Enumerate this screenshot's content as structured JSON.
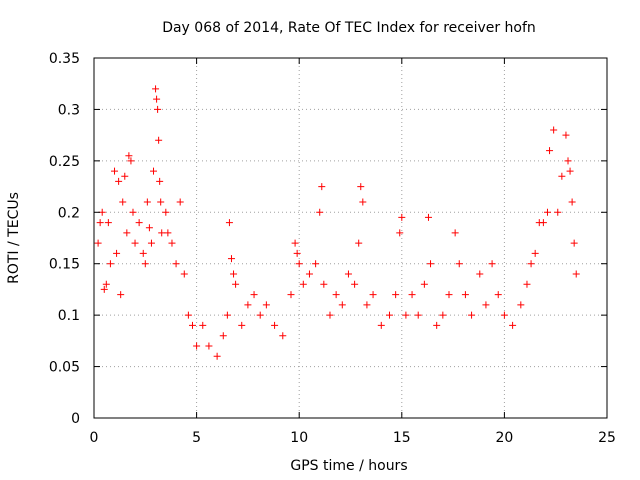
{
  "chart_data": {
    "type": "scatter",
    "title": "Day 068 of 2014, Rate Of TEC Index for receiver hofn",
    "xlabel": "GPS time / hours",
    "ylabel": "ROTI / TECUs",
    "xlim": [
      0,
      25
    ],
    "ylim": [
      0,
      0.35
    ],
    "x_ticks": [
      "0",
      "5",
      "10",
      "15",
      "20",
      "25"
    ],
    "y_ticks": [
      "0",
      "0.05",
      "0.1",
      "0.15",
      "0.2",
      "0.25",
      "0.3",
      "0.35"
    ],
    "grid": true,
    "marker": "plus",
    "series": [
      {
        "color": "#ff0000",
        "points": [
          [
            0.2,
            0.17
          ],
          [
            0.3,
            0.19
          ],
          [
            0.4,
            0.2
          ],
          [
            0.5,
            0.125
          ],
          [
            0.6,
            0.13
          ],
          [
            0.7,
            0.19
          ],
          [
            0.8,
            0.15
          ],
          [
            1.0,
            0.24
          ],
          [
            1.1,
            0.16
          ],
          [
            1.2,
            0.23
          ],
          [
            1.3,
            0.12
          ],
          [
            1.4,
            0.21
          ],
          [
            1.5,
            0.235
          ],
          [
            1.6,
            0.18
          ],
          [
            1.7,
            0.255
          ],
          [
            1.8,
            0.25
          ],
          [
            1.9,
            0.2
          ],
          [
            2.0,
            0.17
          ],
          [
            2.2,
            0.19
          ],
          [
            2.4,
            0.16
          ],
          [
            2.5,
            0.15
          ],
          [
            2.6,
            0.21
          ],
          [
            2.7,
            0.185
          ],
          [
            2.8,
            0.17
          ],
          [
            2.9,
            0.24
          ],
          [
            3.0,
            0.32
          ],
          [
            3.05,
            0.31
          ],
          [
            3.1,
            0.3
          ],
          [
            3.15,
            0.27
          ],
          [
            3.2,
            0.23
          ],
          [
            3.25,
            0.21
          ],
          [
            3.3,
            0.18
          ],
          [
            3.5,
            0.2
          ],
          [
            3.6,
            0.18
          ],
          [
            3.8,
            0.17
          ],
          [
            4.0,
            0.15
          ],
          [
            4.2,
            0.21
          ],
          [
            4.4,
            0.14
          ],
          [
            4.6,
            0.1
          ],
          [
            4.8,
            0.09
          ],
          [
            5.0,
            0.07
          ],
          [
            5.3,
            0.09
          ],
          [
            5.6,
            0.07
          ],
          [
            6.0,
            0.06
          ],
          [
            6.3,
            0.08
          ],
          [
            6.5,
            0.1
          ],
          [
            6.6,
            0.19
          ],
          [
            6.7,
            0.155
          ],
          [
            6.8,
            0.14
          ],
          [
            6.9,
            0.13
          ],
          [
            7.2,
            0.09
          ],
          [
            7.5,
            0.11
          ],
          [
            7.8,
            0.12
          ],
          [
            8.1,
            0.1
          ],
          [
            8.4,
            0.11
          ],
          [
            8.8,
            0.09
          ],
          [
            9.2,
            0.08
          ],
          [
            9.6,
            0.12
          ],
          [
            9.8,
            0.17
          ],
          [
            9.9,
            0.16
          ],
          [
            10.0,
            0.15
          ],
          [
            10.2,
            0.13
          ],
          [
            10.5,
            0.14
          ],
          [
            10.8,
            0.15
          ],
          [
            11.0,
            0.2
          ],
          [
            11.1,
            0.225
          ],
          [
            11.2,
            0.13
          ],
          [
            11.5,
            0.1
          ],
          [
            11.8,
            0.12
          ],
          [
            12.1,
            0.11
          ],
          [
            12.4,
            0.14
          ],
          [
            12.7,
            0.13
          ],
          [
            12.9,
            0.17
          ],
          [
            13.0,
            0.225
          ],
          [
            13.1,
            0.21
          ],
          [
            13.3,
            0.11
          ],
          [
            13.6,
            0.12
          ],
          [
            14.0,
            0.09
          ],
          [
            14.4,
            0.1
          ],
          [
            14.7,
            0.12
          ],
          [
            14.9,
            0.18
          ],
          [
            15.0,
            0.195
          ],
          [
            15.2,
            0.1
          ],
          [
            15.5,
            0.12
          ],
          [
            15.8,
            0.1
          ],
          [
            16.1,
            0.13
          ],
          [
            16.3,
            0.195
          ],
          [
            16.4,
            0.15
          ],
          [
            16.7,
            0.09
          ],
          [
            17.0,
            0.1
          ],
          [
            17.3,
            0.12
          ],
          [
            17.6,
            0.18
          ],
          [
            17.8,
            0.15
          ],
          [
            18.1,
            0.12
          ],
          [
            18.4,
            0.1
          ],
          [
            18.8,
            0.14
          ],
          [
            19.1,
            0.11
          ],
          [
            19.4,
            0.15
          ],
          [
            19.7,
            0.12
          ],
          [
            20.0,
            0.1
          ],
          [
            20.4,
            0.09
          ],
          [
            20.8,
            0.11
          ],
          [
            21.1,
            0.13
          ],
          [
            21.3,
            0.15
          ],
          [
            21.5,
            0.16
          ],
          [
            21.7,
            0.19
          ],
          [
            21.9,
            0.19
          ],
          [
            22.1,
            0.2
          ],
          [
            22.2,
            0.26
          ],
          [
            22.4,
            0.28
          ],
          [
            22.6,
            0.2
          ],
          [
            22.8,
            0.235
          ],
          [
            23.0,
            0.275
          ],
          [
            23.1,
            0.25
          ],
          [
            23.2,
            0.24
          ],
          [
            23.3,
            0.21
          ],
          [
            23.4,
            0.17
          ],
          [
            23.5,
            0.14
          ]
        ]
      }
    ]
  }
}
